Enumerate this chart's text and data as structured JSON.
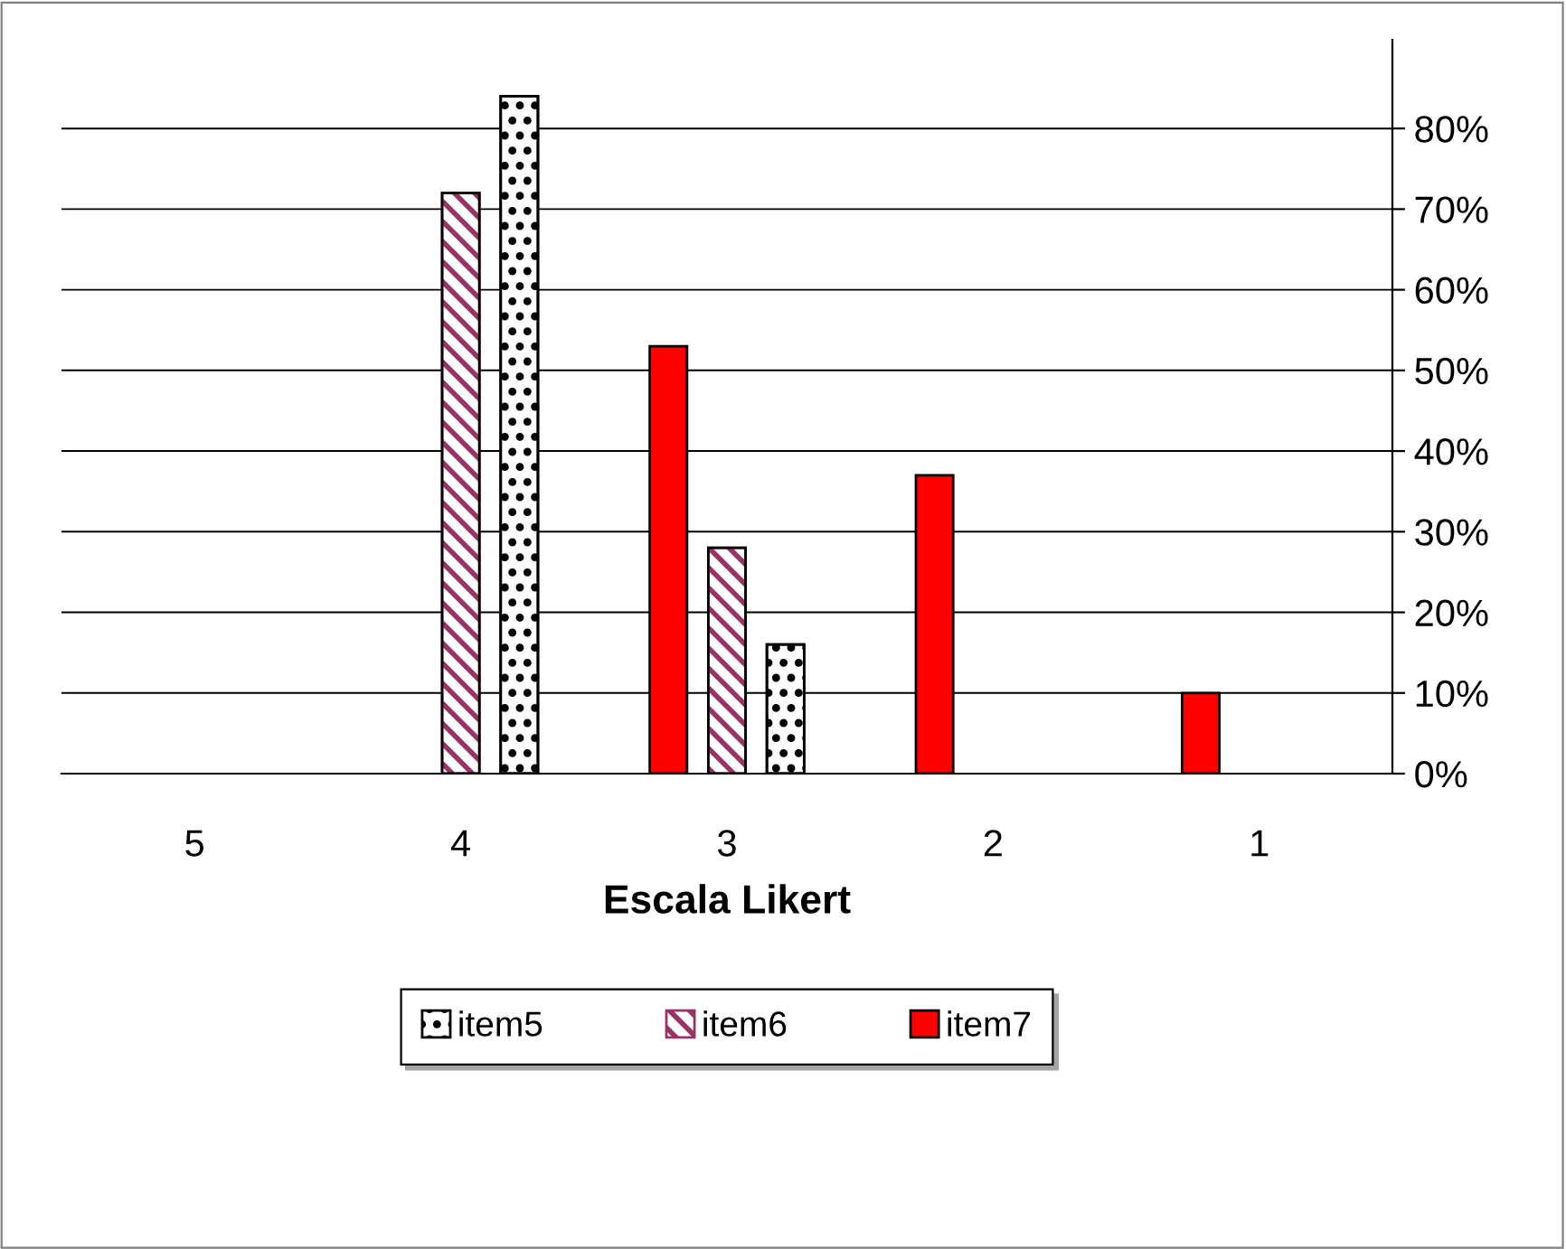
{
  "chart_data": {
    "type": "bar",
    "xlabel": "Escala Likert",
    "categories": [
      "5",
      "4",
      "3",
      "2",
      "1"
    ],
    "series": [
      {
        "name": "item5",
        "color": "#000000",
        "values": [
          null,
          84,
          16,
          null,
          null
        ]
      },
      {
        "name": "item6",
        "color": "#993366",
        "values": [
          null,
          72,
          28,
          null,
          null
        ]
      },
      {
        "name": "item7",
        "color": "#ff0000",
        "values": [
          null,
          null,
          53,
          37,
          10
        ]
      }
    ],
    "ylim": [
      0,
      91
    ],
    "yticks": [
      {
        "value": 0,
        "label": "0%"
      },
      {
        "value": 10,
        "label": "10%"
      },
      {
        "value": 20,
        "label": "20%"
      },
      {
        "value": 30,
        "label": "30%"
      },
      {
        "value": 40,
        "label": "40%"
      },
      {
        "value": 50,
        "label": "50%"
      },
      {
        "value": 60,
        "label": "60%"
      },
      {
        "value": 70,
        "label": "70%"
      },
      {
        "value": 80,
        "label": "80%"
      }
    ],
    "grid": "y",
    "legend": "bottom"
  }
}
